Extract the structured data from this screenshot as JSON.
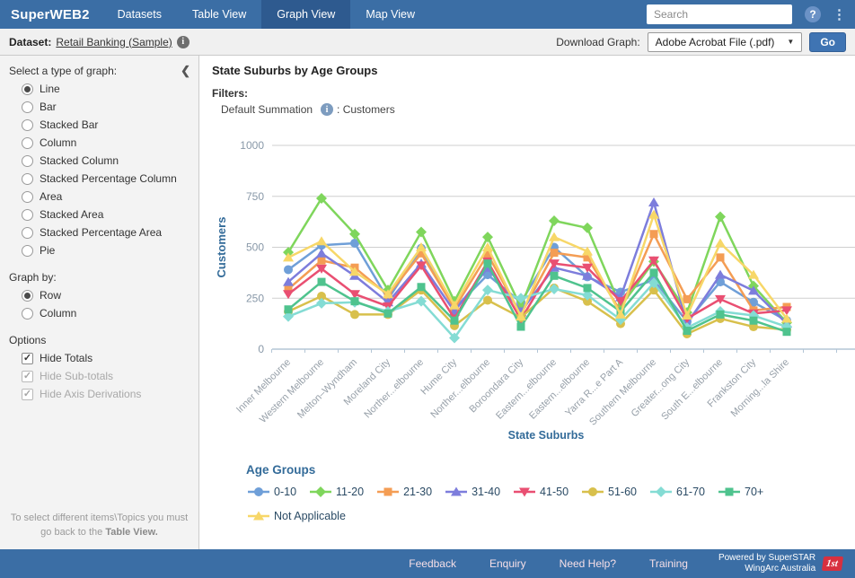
{
  "header": {
    "brand": "SuperWEB2",
    "tabs": [
      {
        "label": "Datasets",
        "active": false
      },
      {
        "label": "Table View",
        "active": false
      },
      {
        "label": "Graph View",
        "active": true
      },
      {
        "label": "Map View",
        "active": false
      }
    ],
    "search_placeholder": "Search",
    "help_glyph": "?",
    "kebab_glyph": "⋮"
  },
  "dataset_bar": {
    "label": "Dataset:",
    "dataset_link": "Retail Banking (Sample)",
    "download_label": "Download Graph:",
    "download_format": "Adobe Acrobat File (.pdf)",
    "go_label": "Go"
  },
  "sidebar": {
    "graph_type_label": "Select a type of graph:",
    "graph_types": [
      {
        "label": "Line",
        "selected": true
      },
      {
        "label": "Bar",
        "selected": false
      },
      {
        "label": "Stacked Bar",
        "selected": false
      },
      {
        "label": "Column",
        "selected": false
      },
      {
        "label": "Stacked Column",
        "selected": false
      },
      {
        "label": "Stacked Percentage Column",
        "selected": false
      },
      {
        "label": "Area",
        "selected": false
      },
      {
        "label": "Stacked Area",
        "selected": false
      },
      {
        "label": "Stacked Percentage Area",
        "selected": false
      },
      {
        "label": "Pie",
        "selected": false
      }
    ],
    "graph_by_label": "Graph by:",
    "graph_by": [
      {
        "label": "Row",
        "selected": true
      },
      {
        "label": "Column",
        "selected": false
      }
    ],
    "options_label": "Options",
    "options": [
      {
        "label": "Hide Totals",
        "checked": true,
        "disabled": false
      },
      {
        "label": "Hide Sub-totals",
        "checked": true,
        "disabled": true
      },
      {
        "label": "Hide Axis Derivations",
        "checked": true,
        "disabled": true
      }
    ],
    "note": "To select different items\\Topics you must go back to the",
    "note_bold": "Table View."
  },
  "content": {
    "title": "State Suburbs by Age Groups",
    "filters_label": "Filters:",
    "filter_name": "Default Summation",
    "filter_value": ": Customers"
  },
  "chart_data": {
    "type": "line",
    "title": "State Suburbs by Age Groups",
    "xlabel": "State Suburbs",
    "ylabel": "Customers",
    "ylim": [
      0,
      1000
    ],
    "yticks": [
      0,
      250,
      500,
      750,
      1000
    ],
    "grid": "horizontal",
    "legend_title": "Age Groups",
    "legend_position": "bottom",
    "categories": [
      "Inner Melbourne",
      "Western Melbourne",
      "Melton–Wyndham",
      "Moreland City",
      "Norther...elbourne",
      "Hume City",
      "Norther...elbourne",
      "Boroondara City",
      "Eastern...elbourne",
      "Eastern...elbourne",
      "Yarra R...e Part A",
      "Southern Melbourne",
      "Greater...ong City",
      "South E...elbourne",
      "Frankston City",
      "Morning...la Shire"
    ],
    "series": [
      {
        "name": "0-10",
        "color": "#6f9fd8",
        "marker": "circle",
        "values": [
          390,
          510,
          520,
          245,
          495,
          200,
          365,
          230,
          500,
          355,
          280,
          340,
          135,
          330,
          230,
          140
        ]
      },
      {
        "name": "11-20",
        "color": "#7fd65c",
        "marker": "diamond",
        "values": [
          475,
          740,
          565,
          290,
          575,
          235,
          550,
          205,
          630,
          595,
          210,
          430,
          180,
          650,
          310,
          130
        ]
      },
      {
        "name": "21-30",
        "color": "#f49d54",
        "marker": "square",
        "values": [
          295,
          435,
          400,
          265,
          470,
          200,
          465,
          170,
          473,
          450,
          185,
          565,
          245,
          450,
          190,
          207
        ]
      },
      {
        "name": "31-40",
        "color": "#7d7ddc",
        "marker": "triangle-up",
        "values": [
          330,
          470,
          360,
          230,
          420,
          185,
          400,
          185,
          400,
          360,
          255,
          720,
          125,
          365,
          287,
          125
        ]
      },
      {
        "name": "41-50",
        "color": "#e94f72",
        "marker": "triangle-down",
        "values": [
          270,
          395,
          270,
          210,
          410,
          150,
          430,
          145,
          420,
          400,
          235,
          435,
          150,
          245,
          175,
          190
        ]
      },
      {
        "name": "51-60",
        "color": "#d8c04c",
        "marker": "circle",
        "values": [
          185,
          260,
          170,
          170,
          290,
          115,
          240,
          155,
          300,
          235,
          125,
          290,
          75,
          150,
          110,
          95
        ]
      },
      {
        "name": "61-70",
        "color": "#84dcd4",
        "marker": "diamond",
        "values": [
          160,
          225,
          230,
          185,
          235,
          55,
          290,
          250,
          295,
          265,
          145,
          325,
          105,
          185,
          165,
          110
        ]
      },
      {
        "name": "70+",
        "color": "#4fc38e",
        "marker": "square",
        "values": [
          195,
          330,
          235,
          175,
          305,
          140,
          420,
          110,
          360,
          300,
          185,
          375,
          90,
          170,
          140,
          85
        ]
      },
      {
        "name": "Not Applicable",
        "color": "#f7d768",
        "marker": "triangle-up",
        "values": [
          450,
          530,
          380,
          270,
          500,
          215,
          500,
          160,
          550,
          480,
          170,
          660,
          165,
          520,
          365,
          150
        ]
      }
    ],
    "colors": {
      "axis_title": "#336b99",
      "y_tick": "#8898a8",
      "x_tick": "#97a0a9",
      "gridline": "#cfcfcf",
      "axis_line": "#b3c6d6"
    }
  },
  "footer": {
    "links": [
      "Feedback",
      "Enquiry",
      "Need Help?",
      "Training"
    ],
    "powered_line1": "Powered by SuperSTAR",
    "powered_line2": "WingArc Australia",
    "logo": "1st"
  }
}
